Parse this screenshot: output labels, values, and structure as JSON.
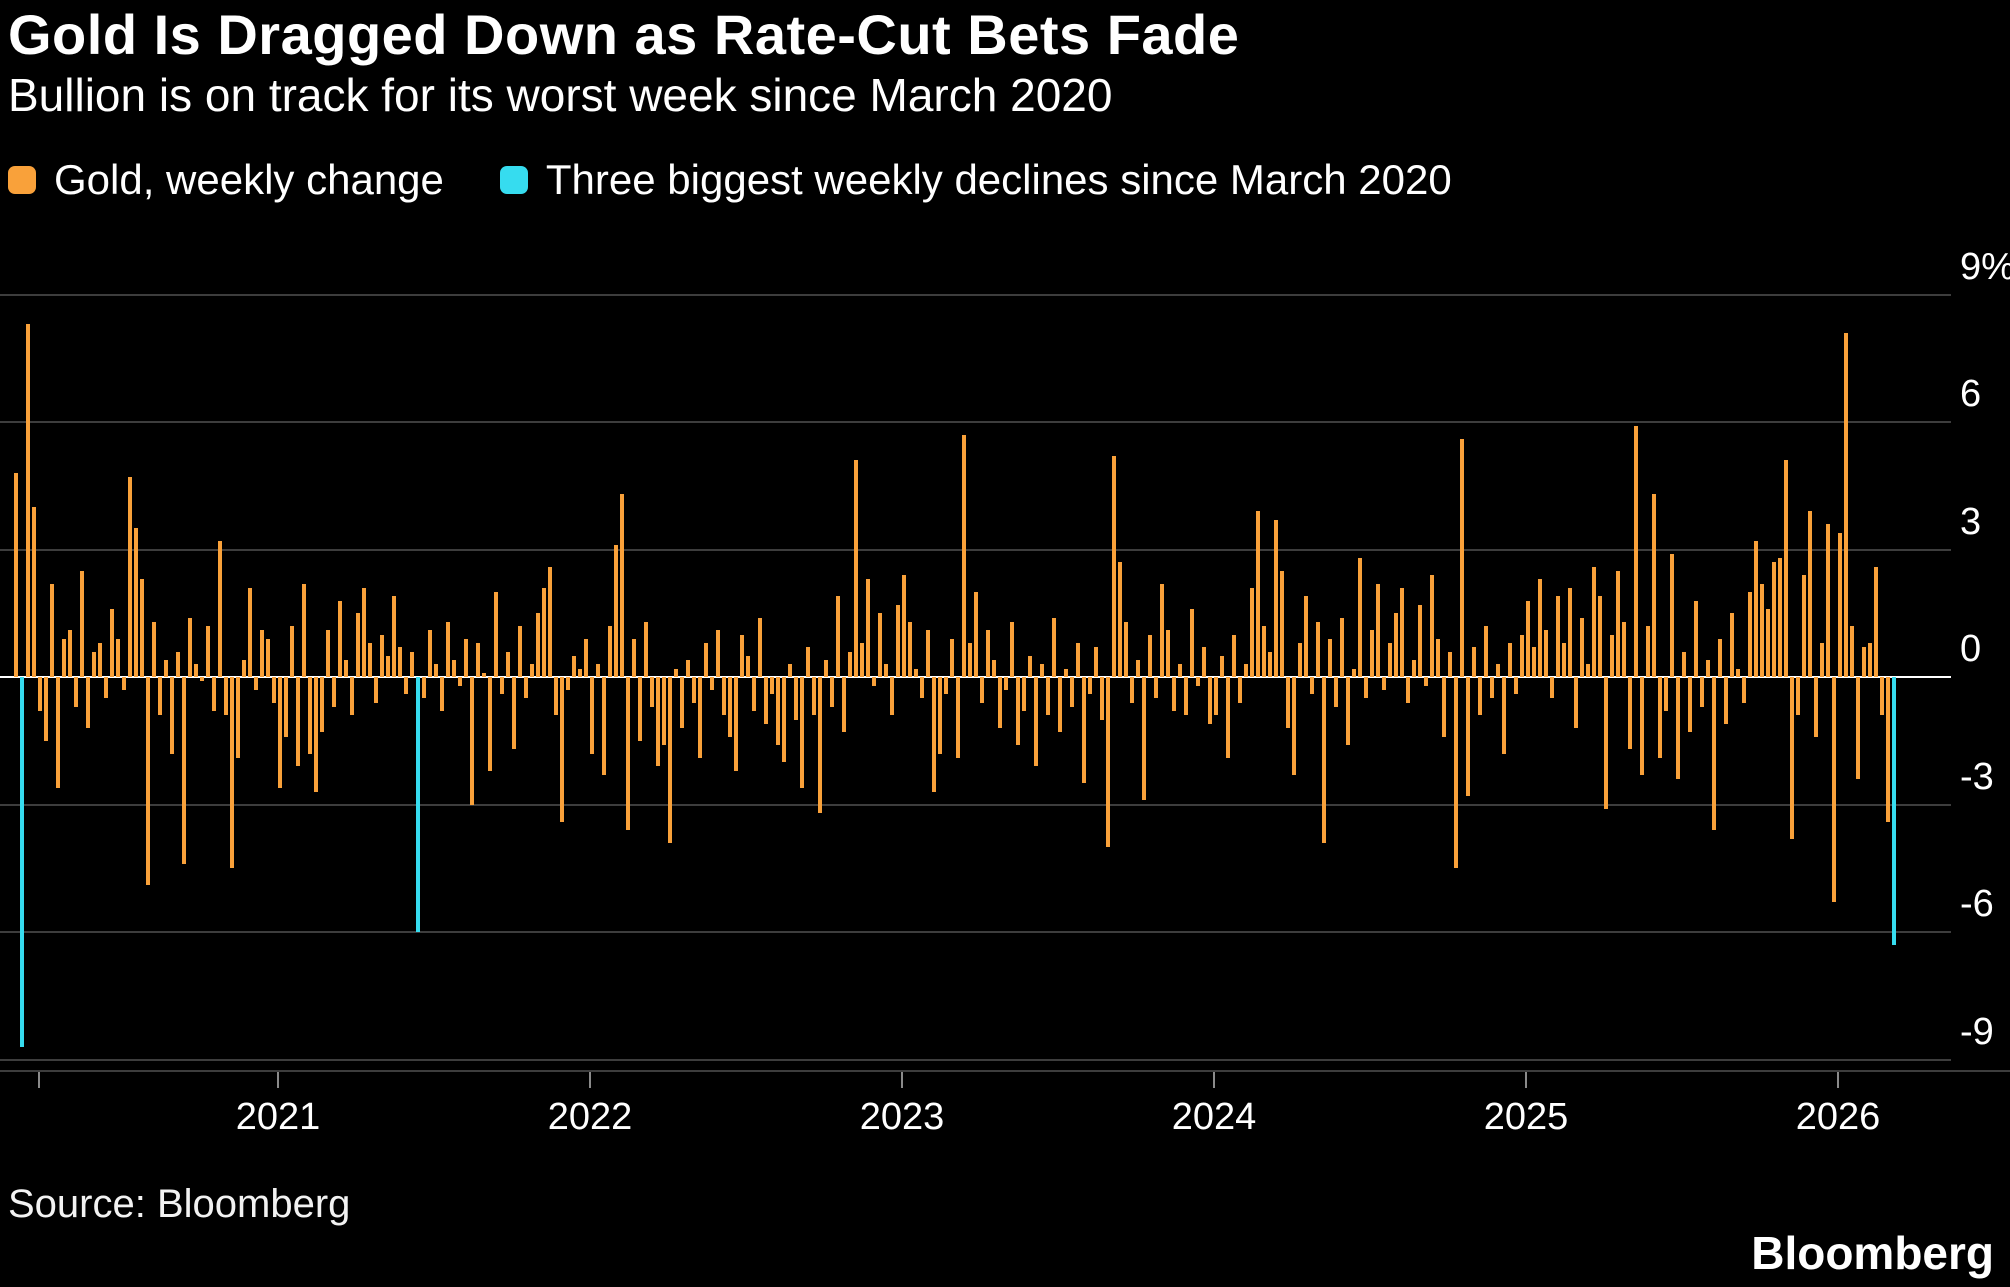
{
  "header": {
    "title": "Gold Is Dragged Down as Rate-Cut Bets Fade",
    "subtitle": "Bullion is on track for its worst week since March 2020"
  },
  "legend": [
    {
      "label": "Gold, weekly change",
      "color": "#F9A13A"
    },
    {
      "label": "Three biggest weekly declines since March 2020",
      "color": "#36DCEF"
    }
  ],
  "footer": {
    "source": "Source: Bloomberg",
    "brand": "Bloomberg"
  },
  "chart_data": {
    "type": "bar",
    "title": "Gold Is Dragged Down as Rate-Cut Bets Fade",
    "subtitle": "Bullion is on track for its worst week since March 2020",
    "ylabel": "%",
    "ylim": [
      -9.9,
      9.5
    ],
    "yticks": [
      9,
      6,
      3,
      0,
      -3,
      -6,
      -9
    ],
    "ytick_labels": [
      "9%",
      "6",
      "3",
      "0",
      "-3",
      "-6",
      "-9"
    ],
    "grid": true,
    "legend_position": "top",
    "x_frequency": "weekly",
    "x_start": "2020-03",
    "x_end": "2026-03",
    "xtick_labels": [
      "2021",
      "2022",
      "2023",
      "2024",
      "2025",
      "2026"
    ],
    "series": [
      {
        "name": "Gold, weekly change",
        "values": [
          4.8,
          -8.7,
          8.3,
          4.0,
          -0.8,
          -1.5,
          2.2,
          -2.6,
          0.9,
          1.1,
          -0.7,
          2.5,
          -1.2,
          0.6,
          0.8,
          -0.5,
          1.6,
          0.9,
          -0.3,
          4.7,
          3.5,
          2.3,
          -4.9,
          1.3,
          -0.9,
          0.4,
          -1.8,
          0.6,
          -4.4,
          1.4,
          0.3,
          -0.1,
          1.2,
          -0.8,
          3.2,
          -0.9,
          -4.5,
          -1.9,
          0.4,
          2.1,
          -0.3,
          1.1,
          0.9,
          -0.6,
          -2.6,
          -1.4,
          1.2,
          -2.1,
          2.2,
          -1.8,
          -2.7,
          -1.3,
          1.1,
          -0.7,
          1.8,
          0.4,
          -0.9,
          1.5,
          2.1,
          0.8,
          -0.6,
          1.0,
          0.5,
          1.9,
          0.7,
          -0.4,
          0.6,
          -6.0,
          -0.5,
          1.1,
          0.3,
          -0.8,
          1.3,
          0.4,
          -0.2,
          0.9,
          -3.0,
          0.8,
          0.1,
          -2.2,
          2.0,
          -0.4,
          0.6,
          -1.7,
          1.2,
          -0.5,
          0.3,
          1.5,
          2.1,
          2.6,
          -0.9,
          -3.4,
          -0.3,
          0.5,
          0.2,
          0.9,
          -1.8,
          0.3,
          -2.3,
          1.2,
          3.1,
          4.3,
          -3.6,
          0.9,
          -1.5,
          1.3,
          -0.7,
          -2.1,
          -1.6,
          -3.9,
          0.2,
          -1.2,
          0.4,
          -0.6,
          -1.9,
          0.8,
          -0.3,
          1.1,
          -0.9,
          -1.4,
          -2.2,
          1.0,
          0.5,
          -0.8,
          1.4,
          -1.1,
          -0.4,
          -1.6,
          -2.0,
          0.3,
          -1.0,
          -2.6,
          0.7,
          -0.9,
          -3.2,
          0.4,
          -0.7,
          1.9,
          -1.3,
          0.6,
          5.1,
          0.8,
          2.3,
          -0.2,
          1.5,
          0.3,
          -0.9,
          1.7,
          2.4,
          1.3,
          0.2,
          -0.5,
          1.1,
          -2.7,
          -1.8,
          -0.4,
          0.9,
          -1.9,
          5.7,
          0.8,
          2.0,
          -0.6,
          1.1,
          0.4,
          -1.2,
          -0.3,
          1.3,
          -1.6,
          -0.8,
          0.5,
          -2.1,
          0.3,
          -0.9,
          1.4,
          -1.3,
          0.2,
          -0.7,
          0.8,
          -2.5,
          -0.4,
          0.7,
          -1.0,
          -4.0,
          5.2,
          2.7,
          1.3,
          -0.6,
          0.4,
          -2.9,
          1.0,
          -0.5,
          2.2,
          1.1,
          -0.8,
          0.3,
          -0.9,
          1.6,
          -0.2,
          0.7,
          -1.1,
          -0.9,
          0.5,
          -1.9,
          1.0,
          -0.6,
          0.3,
          2.1,
          3.9,
          1.2,
          0.6,
          3.7,
          2.5,
          -1.2,
          -2.3,
          0.8,
          1.9,
          -0.4,
          1.3,
          -3.9,
          0.9,
          -0.7,
          1.4,
          -1.6,
          0.2,
          2.8,
          -0.5,
          1.1,
          2.2,
          -0.3,
          0.8,
          1.5,
          2.1,
          -0.6,
          0.4,
          1.7,
          -0.2,
          2.4,
          0.9,
          -1.4,
          0.6,
          -4.5,
          5.6,
          -2.8,
          0.7,
          -0.9,
          1.2,
          -0.5,
          0.3,
          -1.8,
          0.8,
          -0.4,
          1.0,
          1.8,
          0.7,
          2.3,
          1.1,
          -0.5,
          1.9,
          0.8,
          2.1,
          -1.2,
          1.4,
          0.3,
          2.6,
          1.9,
          -3.1,
          1.0,
          2.5,
          1.3,
          -1.7,
          5.9,
          -2.3,
          1.2,
          4.3,
          -1.9,
          -0.8,
          2.9,
          -2.4,
          0.6,
          -1.3,
          1.8,
          -0.7,
          0.4,
          -3.6,
          0.9,
          -1.1,
          1.5,
          0.2,
          -0.6,
          2.0,
          3.2,
          2.2,
          1.6,
          2.7,
          2.8,
          5.1,
          -3.8,
          -0.9,
          2.4,
          3.9,
          -1.4,
          0.8,
          3.6,
          -5.3,
          3.4,
          8.1,
          1.2,
          -2.4,
          0.7,
          0.8,
          2.6,
          -0.9,
          -3.4,
          -6.3
        ]
      }
    ],
    "highlight": {
      "name": "Three biggest weekly declines since March 2020",
      "indices": [
        1,
        67,
        313
      ],
      "values": [
        -8.7,
        -6.0,
        -6.3
      ]
    },
    "colors": {
      "bar": "#F9A13A",
      "highlight": "#36DCEF",
      "grid": "#3d3d3d",
      "zero_line": "#ffffff",
      "background": "#000000",
      "text": "#ffffff"
    }
  }
}
